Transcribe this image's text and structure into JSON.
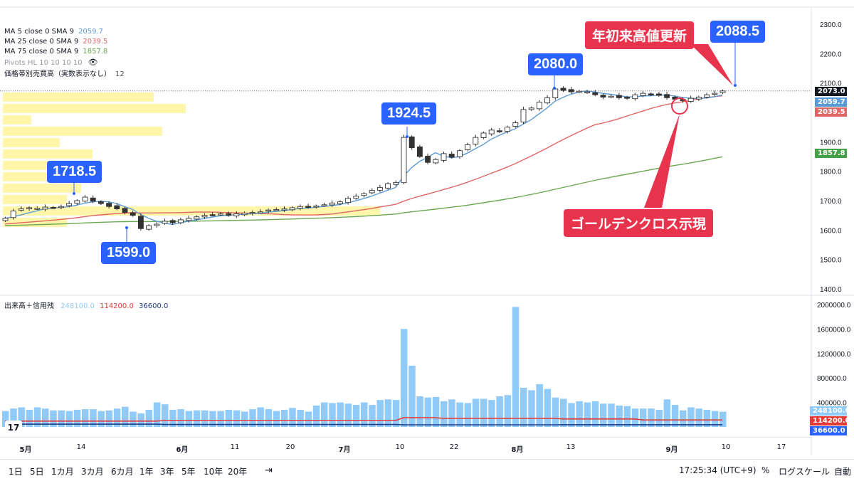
{
  "legend": {
    "ma5": {
      "label": "MA 5 close 0 SMA 9",
      "value": "2059.7",
      "color": "#5b9bd5"
    },
    "ma25": {
      "label": "MA 25 close 0 SMA 9",
      "value": "2039.5",
      "color": "#e06666"
    },
    "ma75": {
      "label": "MA 75 close 0 SMA 9",
      "value": "1857.8",
      "color": "#6aa84f"
    },
    "pivots": {
      "label": "Pivots HL 10 10 10 10"
    },
    "vp": {
      "label": "価格帯別売買高（実数表示なし）",
      "value": "12"
    }
  },
  "callouts": {
    "high_1718": "1718.5",
    "low_1599": "1599.0",
    "high_1924": "1924.5",
    "high_2080": "2080.0",
    "high_2088": "2088.5",
    "ytd_high": "年初来高値更新",
    "golden_cross": "ゴールデンクロス示現"
  },
  "price_axis": {
    "ticks": [
      "2300.0",
      "2200.0",
      "2100.0",
      "1900.0",
      "1800.0",
      "1700.0",
      "1600.0",
      "1500.0",
      "1400.0"
    ],
    "tags": [
      {
        "text": "2073.0",
        "color": "#131722"
      },
      {
        "text": "2059.7",
        "color": "#5b9bd5"
      },
      {
        "text": "2039.5",
        "color": "#e06666"
      },
      {
        "text": "1857.8",
        "color": "#43a047"
      }
    ]
  },
  "volume": {
    "legend_label": "出来高＋信用残",
    "legend_values": [
      {
        "text": "248100.0",
        "color": "#90caf9"
      },
      {
        "text": "114200.0",
        "color": "#e53935"
      },
      {
        "text": "36600.0",
        "color": "#1e3a8a"
      }
    ],
    "ticks": [
      "2000000.0",
      "1600000.0",
      "1200000.0",
      "800000.0",
      "400000.0"
    ],
    "tags": [
      {
        "text": "248100.0",
        "color": "#90caf9"
      },
      {
        "text": "114200.0",
        "color": "#e53935"
      },
      {
        "text": "36600.0",
        "color": "#2962ff"
      }
    ]
  },
  "time_axis": {
    "labels": [
      {
        "text": "5月",
        "bold": true
      },
      {
        "text": "14",
        "bold": false
      },
      {
        "text": "6月",
        "bold": true
      },
      {
        "text": "11",
        "bold": false
      },
      {
        "text": "20",
        "bold": false
      },
      {
        "text": "7月",
        "bold": true
      },
      {
        "text": "10",
        "bold": false
      },
      {
        "text": "22",
        "bold": false
      },
      {
        "text": "8月",
        "bold": true
      },
      {
        "text": "13",
        "bold": false
      },
      {
        "text": "9月",
        "bold": true
      },
      {
        "text": "10",
        "bold": false
      },
      {
        "text": "17",
        "bold": false
      }
    ]
  },
  "bottom_bar": {
    "timeframes": [
      "1日",
      "5日",
      "1カ月",
      "3カ月",
      "6カ月",
      "1年",
      "3年",
      "5年",
      "10年",
      "20年"
    ],
    "clock": "17:25:34 (UTC+9)",
    "percent": "%",
    "log": "ログスケール",
    "auto": "自動",
    "logo": "17"
  },
  "chart_data": {
    "type": "candlestick",
    "price_range": [
      1360,
      2340
    ],
    "grid": false,
    "candles_close": [
      1640,
      1665,
      1672,
      1676,
      1674,
      1678,
      1676,
      1680,
      1690,
      1700,
      1712,
      1698,
      1690,
      1680,
      1672,
      1660,
      1650,
      1605,
      1615,
      1620,
      1630,
      1625,
      1635,
      1640,
      1645,
      1650,
      1652,
      1655,
      1650,
      1655,
      1658,
      1660,
      1662,
      1668,
      1670,
      1672,
      1676,
      1680,
      1677,
      1682,
      1686,
      1692,
      1696,
      1708,
      1715,
      1724,
      1735,
      1745,
      1758,
      1762,
      1915,
      1880,
      1850,
      1830,
      1840,
      1860,
      1848,
      1870,
      1890,
      1915,
      1930,
      1940,
      1935,
      1950,
      1965,
      2010,
      2015,
      2035,
      2050,
      2080,
      2075,
      2070,
      2072,
      2070,
      2060,
      2052,
      2055,
      2050,
      2048,
      2060,
      2065,
      2062,
      2058,
      2050,
      2045,
      2040,
      2048,
      2052,
      2060,
      2065,
      2073
    ],
    "ma5_last": 2059.7,
    "ma25_last": 2039.5,
    "ma75_last": 1857.8,
    "volume_range": [
      0,
      2050000
    ],
    "volume": [
      260000,
      300000,
      320000,
      280000,
      320000,
      300000,
      270000,
      270000,
      260000,
      280000,
      290000,
      290000,
      260000,
      270000,
      300000,
      330000,
      250000,
      220000,
      280000,
      400000,
      370000,
      280000,
      290000,
      260000,
      270000,
      270000,
      260000,
      260000,
      280000,
      270000,
      250000,
      290000,
      320000,
      290000,
      260000,
      280000,
      310000,
      280000,
      250000,
      350000,
      400000,
      390000,
      400000,
      380000,
      360000,
      400000,
      360000,
      440000,
      450000,
      440000,
      1600000,
      1000000,
      500000,
      480000,
      490000,
      420000,
      450000,
      400000,
      390000,
      460000,
      460000,
      440000,
      500000,
      520000,
      1960000,
      640000,
      600000,
      700000,
      620000,
      480000,
      460000,
      390000,
      420000,
      400000,
      420000,
      380000,
      380000,
      350000,
      340000,
      300000,
      300000,
      300000,
      280000,
      450000,
      360000,
      270000,
      320000,
      300000,
      280000,
      260000,
      248100
    ],
    "margin_buy": 114200.0,
    "margin_sell": 36600.0
  }
}
